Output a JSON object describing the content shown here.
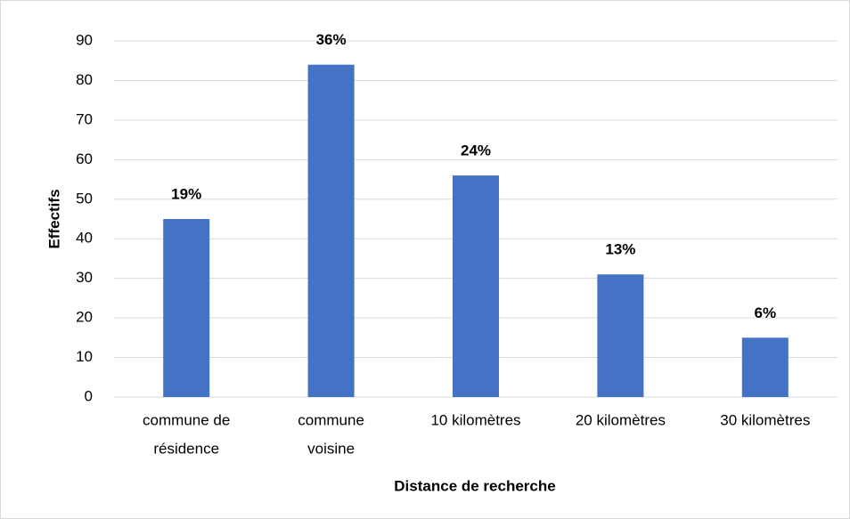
{
  "chart_data": {
    "type": "bar",
    "x_label": "Distance de recherche",
    "y_label": "Effectifs",
    "categories": [
      [
        "commune de",
        "résidence"
      ],
      [
        "commune",
        "voisine"
      ],
      [
        "10 kilomètres"
      ],
      [
        "20 kilomètres"
      ],
      [
        "30 kilomètres"
      ]
    ],
    "values": [
      45,
      84,
      56,
      31,
      15
    ],
    "annotations": [
      "19%",
      "36%",
      "24%",
      "13%",
      "6%"
    ],
    "color": "#4472c4",
    "ylim": [
      0,
      90
    ],
    "yticks": [
      0,
      10,
      20,
      30,
      40,
      50,
      60,
      70,
      80,
      90
    ],
    "grid": true
  }
}
